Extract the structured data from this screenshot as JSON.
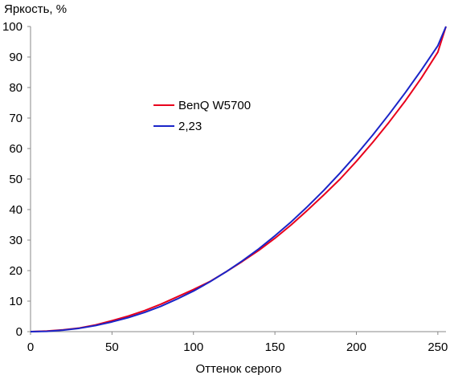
{
  "chart_data": {
    "type": "line",
    "title": "",
    "xlabel": "Оттенок серого",
    "ylabel": "Яркость, %",
    "xlim": [
      0,
      255
    ],
    "ylim": [
      0,
      100
    ],
    "x_ticks": [
      "0",
      "50",
      "100",
      "150",
      "200",
      "250"
    ],
    "y_ticks": [
      "0",
      "10",
      "20",
      "30",
      "40",
      "50",
      "60",
      "70",
      "80",
      "90",
      "100"
    ],
    "grid": false,
    "legend_position": "upper-left-inside",
    "x": [
      0,
      10,
      20,
      30,
      40,
      50,
      60,
      70,
      80,
      90,
      100,
      110,
      120,
      130,
      140,
      150,
      160,
      170,
      180,
      190,
      200,
      210,
      220,
      230,
      240,
      250,
      255
    ],
    "series": [
      {
        "name": "BenQ W5700",
        "color": "#e8001c",
        "values": [
          0,
          0.2,
          0.6,
          1.2,
          2.2,
          3.6,
          5.1,
          6.9,
          9.0,
          11.4,
          13.8,
          16.4,
          19.6,
          23.0,
          26.6,
          30.6,
          35.0,
          39.8,
          44.8,
          50.0,
          55.8,
          62.0,
          68.6,
          75.6,
          83.2,
          91.6,
          100
        ]
      },
      {
        "name": "2,23",
        "color": "#1a24c8",
        "values": [
          0,
          0.1,
          0.5,
          1.1,
          2.0,
          3.2,
          4.6,
          6.3,
          8.3,
          10.7,
          13.3,
          16.3,
          19.6,
          23.2,
          27.1,
          31.4,
          36.0,
          41.0,
          46.3,
          52.0,
          58.0,
          64.4,
          71.2,
          78.3,
          85.8,
          93.7,
          100
        ]
      }
    ]
  }
}
